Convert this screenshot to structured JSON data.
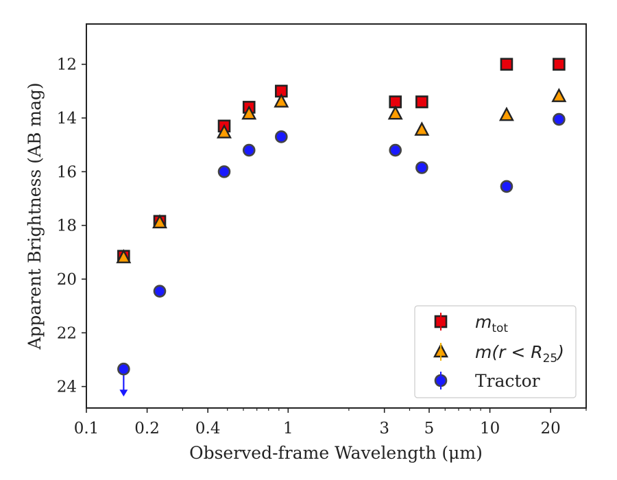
{
  "chart_data": {
    "type": "scatter",
    "xlabel": "Observed-frame Wavelength (μm)",
    "ylabel": "Apparent Brightness (AB mag)",
    "x_scale": "log",
    "xlim": [
      0.1,
      30
    ],
    "ylim": [
      24.8,
      10.5
    ],
    "y_inverted": true,
    "x_ticks": [
      0.1,
      0.2,
      0.4,
      1,
      3,
      5,
      10,
      20
    ],
    "x_tick_labels": [
      "0.1",
      "0.2",
      "0.4",
      "1",
      "3",
      "5",
      "10",
      "20"
    ],
    "y_ticks": [
      12,
      14,
      16,
      18,
      20,
      22,
      24
    ],
    "y_tick_labels": [
      "12",
      "14",
      "16",
      "18",
      "20",
      "22",
      "24"
    ],
    "grid": false,
    "legend_placement": "lower-right",
    "x": [
      0.153,
      0.231,
      0.482,
      0.64,
      0.925,
      3.4,
      4.6,
      12.1,
      22.0
    ],
    "series": [
      {
        "name": "m_tot",
        "legend_main": "m",
        "legend_sub": "tot",
        "marker": "square",
        "color": "#e8000b",
        "error_color": "#e8000b",
        "values": [
          19.15,
          17.85,
          14.3,
          13.6,
          13.0,
          13.4,
          13.4,
          12.0,
          12.0
        ]
      },
      {
        "name": "m(r < R25)",
        "legend_main": "m(r < R",
        "legend_sub": "25",
        "legend_end": ")",
        "marker": "triangle",
        "color": "#ff9d00",
        "error_color": "#f2b000",
        "values": [
          19.2,
          17.9,
          14.55,
          13.85,
          13.4,
          13.85,
          14.45,
          13.9,
          13.2
        ]
      },
      {
        "name": "Tractor",
        "legend_main": "Tractor",
        "marker": "circle",
        "color": "#1a1aff",
        "error_color": "#1a1aff",
        "values": [
          23.35,
          20.45,
          16.0,
          15.2,
          14.7,
          15.2,
          15.85,
          16.55,
          14.05
        ],
        "upper_limit_index": 0
      }
    ]
  }
}
